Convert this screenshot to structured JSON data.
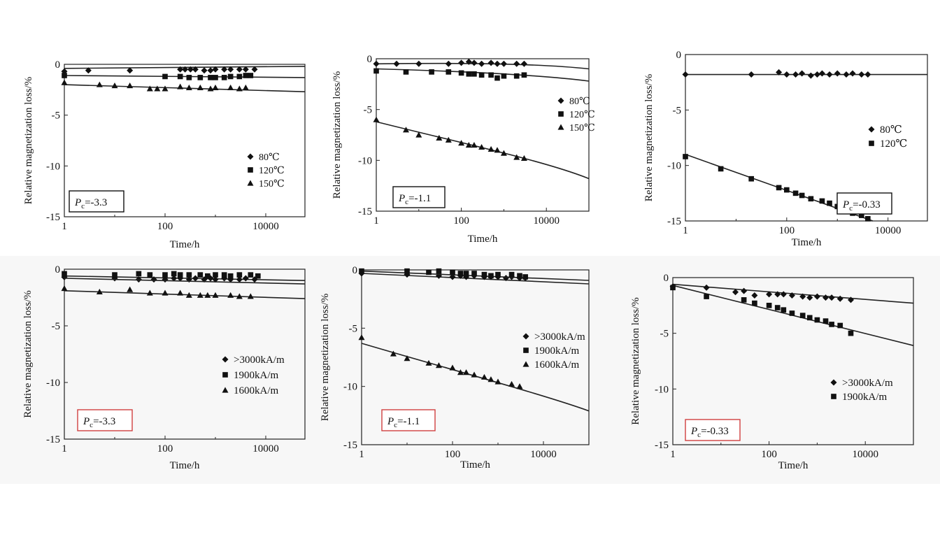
{
  "markers": {
    "diamond": "diamond",
    "square": "square",
    "triangle": "triangle"
  },
  "chart_data": [
    {
      "type": "scatter",
      "title": "",
      "xlabel": "Time/h",
      "ylabel": "Relative magnetization loss/%",
      "xscale": "log",
      "xlim": [
        1,
        60000
      ],
      "ylim": [
        -15,
        0
      ],
      "xticks": [
        "1",
        "100",
        "10000"
      ],
      "yticks": [
        "0",
        "-5",
        "-10",
        "-15"
      ],
      "legend_position": "bottom-right",
      "annotation": {
        "label": "P",
        "sub": "c",
        "value": "=-3.3"
      },
      "series": [
        {
          "name": "80℃",
          "marker": "diamond",
          "x": [
            1,
            3,
            20,
            200,
            250,
            320,
            400,
            600,
            800,
            1000,
            1500,
            2000,
            3000,
            4000,
            6000
          ],
          "y": [
            -0.7,
            -0.6,
            -0.6,
            -0.5,
            -0.5,
            -0.5,
            -0.5,
            -0.6,
            -0.6,
            -0.5,
            -0.5,
            -0.5,
            -0.5,
            -0.5,
            -0.5
          ],
          "fit": [
            [
              1,
              -0.4
            ],
            [
              60000,
              -0.2
            ]
          ]
        },
        {
          "name": "120℃",
          "marker": "square",
          "x": [
            1,
            100,
            200,
            300,
            500,
            800,
            1000,
            1500,
            2000,
            3000,
            4000,
            5000
          ],
          "y": [
            -1.1,
            -1.2,
            -1.2,
            -1.3,
            -1.3,
            -1.3,
            -1.3,
            -1.3,
            -1.2,
            -1.2,
            -1.1,
            -1.1
          ],
          "fit": [
            [
              1,
              -1.1
            ],
            [
              60000,
              -1.3
            ]
          ]
        },
        {
          "name": "150℃",
          "marker": "triangle",
          "x": [
            1,
            5,
            10,
            20,
            50,
            70,
            100,
            200,
            300,
            500,
            800,
            1000,
            2000,
            3000,
            4000
          ],
          "y": [
            -1.8,
            -2.0,
            -2.1,
            -2.1,
            -2.4,
            -2.4,
            -2.4,
            -2.2,
            -2.3,
            -2.3,
            -2.4,
            -2.3,
            -2.3,
            -2.4,
            -2.3
          ],
          "fit": [
            [
              1,
              -2.0
            ],
            [
              60000,
              -2.7
            ]
          ]
        }
      ]
    },
    {
      "type": "scatter",
      "title": "",
      "xlabel": "Time/h",
      "ylabel": "Relative magnetization loss/%",
      "xscale": "log",
      "xlim": [
        1,
        100000
      ],
      "ylim": [
        -15,
        0
      ],
      "xticks": [
        "1",
        "100",
        "10000"
      ],
      "yticks": [
        "0",
        "-5",
        "-10",
        "-15"
      ],
      "legend_position": "right",
      "annotation": {
        "label": "P",
        "sub": "c",
        "value": "=-1.1"
      },
      "series": [
        {
          "name": "80℃",
          "marker": "diamond",
          "x": [
            1,
            3,
            10,
            50,
            100,
            150,
            200,
            300,
            500,
            700,
            1000,
            2000,
            3000
          ],
          "y": [
            -0.5,
            -0.5,
            -0.5,
            -0.5,
            -0.4,
            -0.3,
            -0.4,
            -0.5,
            -0.4,
            -0.5,
            -0.5,
            -0.5,
            -0.5
          ],
          "fit": [
            [
              1,
              -0.5
            ],
            [
              3000,
              -0.3
            ],
            [
              100000,
              -1.0
            ]
          ]
        },
        {
          "name": "120℃",
          "marker": "square",
          "x": [
            1,
            5,
            20,
            50,
            100,
            150,
            200,
            300,
            500,
            700,
            1000,
            2000,
            3000
          ],
          "y": [
            -1.2,
            -1.3,
            -1.3,
            -1.3,
            -1.4,
            -1.5,
            -1.5,
            -1.6,
            -1.6,
            -1.9,
            -1.7,
            -1.7,
            -1.6
          ],
          "fit": [
            [
              1,
              -1.0
            ],
            [
              3000,
              -1.4
            ],
            [
              100000,
              -2.2
            ]
          ]
        },
        {
          "name": "150℃",
          "marker": "triangle",
          "x": [
            1,
            5,
            10,
            30,
            50,
            100,
            150,
            200,
            300,
            500,
            700,
            1000,
            2000,
            3000
          ],
          "y": [
            -6.0,
            -7.0,
            -7.5,
            -7.8,
            -8.0,
            -8.3,
            -8.5,
            -8.5,
            -8.7,
            -8.9,
            -9.0,
            -9.3,
            -9.7,
            -9.8
          ],
          "fit": [
            [
              1,
              -6.2
            ],
            [
              100,
              -8.3
            ],
            [
              10000,
              -10.1
            ],
            [
              100000,
              -11.8
            ]
          ]
        }
      ]
    },
    {
      "type": "scatter",
      "title": "",
      "xlabel": "Time/h",
      "ylabel": "Relative magnetization loss/%",
      "xscale": "log",
      "xlim": [
        1,
        60000
      ],
      "ylim": [
        -15,
        0
      ],
      "xticks": [
        "1",
        "100",
        "10000"
      ],
      "yticks": [
        "0",
        "-5",
        "-10",
        "-15"
      ],
      "legend_position": "right",
      "annotation": {
        "label": "P",
        "sub": "c",
        "value": "=-0.33"
      },
      "series": [
        {
          "name": "80℃",
          "marker": "diamond",
          "x": [
            1,
            20,
            70,
            100,
            150,
            200,
            300,
            400,
            500,
            700,
            1000,
            1500,
            2000,
            3000,
            4000
          ],
          "y": [
            -1.8,
            -1.8,
            -1.6,
            -1.8,
            -1.8,
            -1.7,
            -1.9,
            -1.8,
            -1.7,
            -1.8,
            -1.7,
            -1.8,
            -1.7,
            -1.8,
            -1.8
          ],
          "fit": [
            [
              1,
              -1.8
            ],
            [
              60000,
              -1.8
            ]
          ]
        },
        {
          "name": "120℃",
          "marker": "square",
          "x": [
            1,
            5,
            20,
            70,
            100,
            150,
            200,
            300,
            500,
            700,
            1000,
            1500,
            2000,
            3000,
            4000
          ],
          "y": [
            -9.2,
            -10.3,
            -11.2,
            -12.0,
            -12.2,
            -12.5,
            -12.7,
            -13.0,
            -13.2,
            -13.4,
            -13.7,
            -14.0,
            -14.3,
            -14.5,
            -14.8
          ],
          "fit": [
            [
              1,
              -9.0
            ],
            [
              5000,
              -15.0
            ]
          ]
        }
      ]
    },
    {
      "type": "scatter",
      "title": "",
      "xlabel": "Time/h",
      "ylabel": "Relative magnetization loss/%",
      "xscale": "log",
      "xlim": [
        1,
        60000
      ],
      "ylim": [
        -15,
        0
      ],
      "xticks": [
        "1",
        "100",
        "10000"
      ],
      "yticks": [
        "0",
        "-5",
        "-10",
        "-15"
      ],
      "legend_position": "right",
      "annotation": {
        "label": "P",
        "sub": "c",
        "value": "=-3.3"
      },
      "series": [
        {
          "name": ">3000kA/m",
          "marker": "diamond",
          "x": [
            1,
            10,
            30,
            60,
            100,
            150,
            200,
            300,
            400,
            600,
            800,
            1000,
            1500,
            2000,
            3000,
            4000,
            6000
          ],
          "y": [
            -0.7,
            -0.8,
            -0.9,
            -0.9,
            -0.9,
            -0.8,
            -0.8,
            -0.9,
            -0.8,
            -0.9,
            -0.8,
            -0.9,
            -0.8,
            -0.9,
            -0.9,
            -0.8,
            -0.9
          ],
          "fit": [
            [
              1,
              -0.6
            ],
            [
              60000,
              -1.0
            ]
          ]
        },
        {
          "name": "1900kA/m",
          "marker": "square",
          "x": [
            1,
            10,
            30,
            50,
            100,
            150,
            200,
            300,
            500,
            700,
            1000,
            1500,
            2000,
            3000,
            5000,
            7000
          ],
          "y": [
            -0.4,
            -0.5,
            -0.4,
            -0.5,
            -0.5,
            -0.4,
            -0.5,
            -0.5,
            -0.5,
            -0.6,
            -0.5,
            -0.5,
            -0.6,
            -0.5,
            -0.5,
            -0.6
          ],
          "fit": [
            [
              1,
              -0.8
            ],
            [
              60000,
              -1.3
            ]
          ]
        },
        {
          "name": "1600kA/m",
          "marker": "triangle",
          "x": [
            1,
            5,
            20,
            50,
            100,
            200,
            300,
            500,
            700,
            1000,
            2000,
            3000,
            5000
          ],
          "y": [
            -1.7,
            -2.0,
            -1.8,
            -2.1,
            -2.1,
            -2.1,
            -2.3,
            -2.3,
            -2.3,
            -2.3,
            -2.3,
            -2.4,
            -2.4
          ],
          "fit": [
            [
              1,
              -1.9
            ],
            [
              60000,
              -2.6
            ]
          ]
        }
      ]
    },
    {
      "type": "scatter",
      "title": "",
      "xlabel": "Time/h",
      "ylabel": "Relative magnetization loss/%",
      "xscale": "log",
      "xlim": [
        1,
        100000
      ],
      "ylim": [
        -15,
        0
      ],
      "xticks": [
        "1",
        "100",
        "10000"
      ],
      "yticks": [
        "0",
        "-5",
        "-10",
        "-15"
      ],
      "legend_position": "right",
      "annotation": {
        "label": "P",
        "sub": "c",
        "value": "=-1.1"
      },
      "series": [
        {
          "name": ">3000kA/m",
          "marker": "diamond",
          "x": [
            1,
            10,
            50,
            100,
            150,
            200,
            300,
            500,
            700,
            1000,
            1500,
            2000,
            3000,
            4000
          ],
          "y": [
            -0.3,
            -0.4,
            -0.5,
            -0.6,
            -0.5,
            -0.6,
            -0.5,
            -0.6,
            -0.6,
            -0.6,
            -0.7,
            -0.6,
            -0.7,
            -0.7
          ],
          "fit": [
            [
              1,
              -0.3
            ],
            [
              100000,
              -1.2
            ]
          ]
        },
        {
          "name": "1900kA/m",
          "marker": "square",
          "x": [
            1,
            10,
            30,
            50,
            100,
            150,
            200,
            300,
            500,
            700,
            1000,
            2000,
            3000,
            4000
          ],
          "y": [
            -0.1,
            -0.1,
            -0.2,
            -0.1,
            -0.2,
            -0.3,
            -0.3,
            -0.3,
            -0.4,
            -0.5,
            -0.4,
            -0.4,
            -0.5,
            -0.6
          ],
          "fit": [
            [
              1,
              -0.1
            ],
            [
              100000,
              -0.9
            ]
          ]
        },
        {
          "name": "1600kA/m",
          "marker": "triangle",
          "x": [
            1,
            5,
            10,
            30,
            50,
            100,
            150,
            200,
            300,
            500,
            700,
            1000,
            2000,
            3000
          ],
          "y": [
            -5.8,
            -7.2,
            -7.6,
            -8.0,
            -8.2,
            -8.4,
            -8.8,
            -8.8,
            -9.0,
            -9.2,
            -9.4,
            -9.6,
            -9.8,
            -10.0
          ],
          "fit": [
            [
              1,
              -6.3
            ],
            [
              100,
              -8.6
            ],
            [
              10000,
              -10.7
            ],
            [
              100000,
              -12.1
            ]
          ]
        }
      ]
    },
    {
      "type": "scatter",
      "title": "",
      "xlabel": "Time/h",
      "ylabel": "Relative magnetization loss/%",
      "xscale": "log",
      "xlim": [
        1,
        100000
      ],
      "ylim": [
        -15,
        0
      ],
      "xticks": [
        "1",
        "100",
        "10000"
      ],
      "yticks": [
        "0",
        "-5",
        "-10",
        "-15"
      ],
      "legend_position": "right",
      "annotation": {
        "label": "P",
        "sub": "c",
        "value": "=-0.33"
      },
      "series": [
        {
          "name": ">3000kA/m",
          "marker": "diamond",
          "x": [
            1,
            5,
            20,
            30,
            50,
            100,
            150,
            200,
            300,
            500,
            700,
            1000,
            1500,
            2000,
            3000,
            5000
          ],
          "y": [
            -0.8,
            -0.9,
            -1.3,
            -1.2,
            -1.6,
            -1.5,
            -1.5,
            -1.5,
            -1.6,
            -1.7,
            -1.8,
            -1.7,
            -1.8,
            -1.8,
            -1.9,
            -2.0
          ],
          "fit": [
            [
              1,
              -0.6
            ],
            [
              100000,
              -2.3
            ]
          ]
        },
        {
          "name": "1900kA/m",
          "marker": "square",
          "x": [
            1,
            5,
            30,
            50,
            100,
            150,
            200,
            300,
            500,
            700,
            1000,
            1500,
            2000,
            3000,
            5000
          ],
          "y": [
            -0.9,
            -1.7,
            -2.0,
            -2.3,
            -2.5,
            -2.7,
            -2.9,
            -3.2,
            -3.4,
            -3.6,
            -3.8,
            -3.9,
            -4.2,
            -4.3,
            -5.0
          ],
          "fit": [
            [
              1,
              -0.7
            ],
            [
              100000,
              -6.1
            ]
          ]
        }
      ]
    }
  ]
}
